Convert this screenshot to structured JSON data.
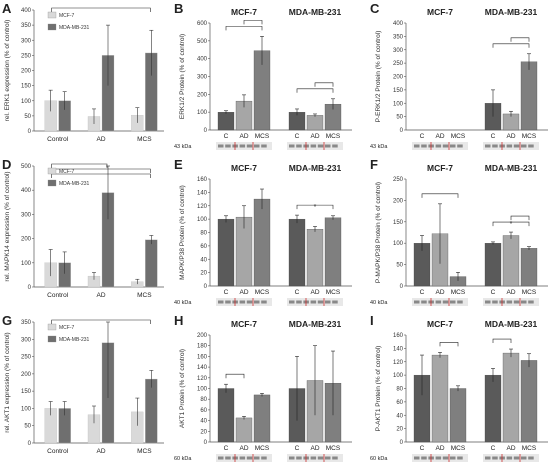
{
  "chart_data": [
    {
      "id": "A",
      "kind": "rna",
      "type": "bar",
      "letter": "A",
      "ylabel": "rel. ERK1 expression (% of control)",
      "ylim": [
        0,
        400
      ],
      "yticks": [
        0,
        50,
        100,
        150,
        200,
        250,
        300,
        350,
        400
      ],
      "categories": [
        "Control",
        "AD",
        "MCS"
      ],
      "series": [
        {
          "name": "MCF-7",
          "values": [
            100,
            48,
            52
          ],
          "err": [
            35,
            25,
            25
          ]
        },
        {
          "name": "MDA-MB-231",
          "values": [
            100,
            250,
            258
          ],
          "err": [
            30,
            100,
            75
          ]
        }
      ],
      "brackets": [
        [
          0,
          2
        ]
      ]
    },
    {
      "id": "B",
      "kind": "protein",
      "type": "bar",
      "letter": "B",
      "ylabel": "ERK1/2 Protein (% of control)",
      "ylim": [
        0,
        600
      ],
      "yticks": [
        0,
        100,
        200,
        300,
        400,
        500,
        600
      ],
      "panels": [
        "MCF-7",
        "MDA-MB-231"
      ],
      "categories": [
        "C",
        "AD",
        "MCS"
      ],
      "groups": [
        {
          "values": [
            100,
            162,
            445
          ],
          "err": [
            8,
            35,
            80
          ]
        },
        {
          "values": [
            100,
            82,
            145
          ],
          "err": [
            18,
            8,
            30
          ]
        }
      ],
      "brackets": [
        [
          [
            0,
            2
          ],
          [
            1,
            2
          ]
        ],
        [
          [
            0,
            2
          ],
          [
            1,
            2
          ]
        ]
      ],
      "stars": [
        [],
        []
      ],
      "blot": "43 kDa"
    },
    {
      "id": "C",
      "kind": "protein",
      "type": "bar",
      "letter": "C",
      "ylabel": "P-ERK1/2 Protein (% of control)",
      "ylim": [
        0,
        400
      ],
      "yticks": [
        0,
        50,
        100,
        150,
        200,
        250,
        300,
        350,
        400
      ],
      "panels": [
        "MCF-7",
        "MDA-MB-231"
      ],
      "categories": [
        "C",
        "AD",
        "MCS"
      ],
      "groups": [
        {
          "values": [
            null,
            null,
            null
          ],
          "err": [
            0,
            0,
            0
          ]
        },
        {
          "values": [
            100,
            60,
            255
          ],
          "err": [
            50,
            10,
            30
          ]
        }
      ],
      "brackets": [
        [],
        [
          [
            0,
            2
          ],
          [
            1,
            2
          ]
        ]
      ],
      "stars": [
        [],
        []
      ],
      "blot": "43 kDa"
    },
    {
      "id": "D",
      "kind": "rna",
      "type": "bar",
      "letter": "D",
      "ylabel": "rel. MAPK14 expression (% of control)",
      "ylim": [
        0,
        500
      ],
      "yticks": [
        0,
        100,
        200,
        300,
        400,
        500
      ],
      "categories": [
        "Control",
        "AD",
        "MCS"
      ],
      "series": [
        {
          "name": "MCF-7",
          "values": [
            100,
            45,
            22
          ],
          "err": [
            55,
            15,
            10
          ]
        },
        {
          "name": "MDA-MB-231",
          "values": [
            100,
            390,
            195
          ],
          "err": [
            45,
            110,
            18
          ]
        }
      ],
      "brackets": [
        [
          0,
          1
        ],
        [
          0,
          2
        ],
        [
          0,
          2
        ]
      ]
    },
    {
      "id": "E",
      "kind": "protein",
      "type": "bar",
      "letter": "E",
      "ylabel": "MAPK/P38 Protein (% of control)",
      "ylim": [
        0,
        160
      ],
      "yticks": [
        0,
        20,
        40,
        60,
        80,
        100,
        120,
        140,
        160
      ],
      "panels": [
        "MCF-7",
        "MDA-MB-231"
      ],
      "categories": [
        "C",
        "AD",
        "MCS"
      ],
      "groups": [
        {
          "values": [
            100,
            103,
            130
          ],
          "err": [
            5,
            17,
            15
          ]
        },
        {
          "values": [
            100,
            85,
            102
          ],
          "err": [
            6,
            4,
            3
          ]
        }
      ],
      "brackets": [
        [],
        [
          [
            0,
            2
          ]
        ]
      ],
      "stars": [
        [],
        [
          1
        ]
      ],
      "blot": "40 kDa"
    },
    {
      "id": "F",
      "kind": "protein",
      "type": "bar",
      "letter": "F",
      "ylabel": "P-MAPK/P38 Protein (% of control)",
      "ylim": [
        0,
        250
      ],
      "yticks": [
        0,
        50,
        100,
        150,
        200,
        250
      ],
      "panels": [
        "MCF-7",
        "MDA-MB-231"
      ],
      "categories": [
        "C",
        "AD",
        "MCS"
      ],
      "groups": [
        {
          "values": [
            100,
            122,
            22
          ],
          "err": [
            18,
            70,
            10
          ]
        },
        {
          "values": [
            100,
            118,
            88
          ],
          "err": [
            3,
            8,
            4
          ]
        }
      ],
      "brackets": [
        [
          [
            0,
            2
          ]
        ],
        [
          [
            0,
            2
          ],
          [
            1,
            2
          ]
        ]
      ],
      "stars": [
        [],
        [
          1
        ]
      ],
      "blot": "40 kDa"
    },
    {
      "id": "G",
      "kind": "rna",
      "type": "bar",
      "letter": "G",
      "ylabel": "rel. AKT1 expression (% of control)",
      "ylim": [
        0,
        350
      ],
      "yticks": [
        0,
        50,
        100,
        150,
        200,
        250,
        300,
        350
      ],
      "categories": [
        "Control",
        "AD",
        "MCS"
      ],
      "series": [
        {
          "name": "MCF-7",
          "values": [
            100,
            82,
            90
          ],
          "err": [
            20,
            25,
            40
          ]
        },
        {
          "name": "MDA-MB-231",
          "values": [
            100,
            290,
            185
          ],
          "err": [
            20,
            160,
            25
          ]
        }
      ],
      "brackets": [
        [
          0,
          2
        ]
      ]
    },
    {
      "id": "H",
      "kind": "protein",
      "type": "bar",
      "letter": "H",
      "ylabel": "AKT1 Protein (% of control)",
      "ylim": [
        0,
        200
      ],
      "yticks": [
        0,
        20,
        40,
        60,
        80,
        100,
        120,
        140,
        160,
        180,
        200
      ],
      "panels": [
        "MCF-7",
        "MDA-MB-231"
      ],
      "categories": [
        "C",
        "AD",
        "MCS"
      ],
      "groups": [
        {
          "values": [
            100,
            45,
            88
          ],
          "err": [
            8,
            3,
            3
          ]
        },
        {
          "values": [
            100,
            115,
            110
          ],
          "err": [
            60,
            65,
            60
          ]
        }
      ],
      "brackets": [
        [
          [
            0,
            1
          ]
        ],
        []
      ],
      "stars": [
        [],
        []
      ],
      "blot": "60 kDa"
    },
    {
      "id": "I",
      "kind": "protein",
      "type": "bar",
      "letter": "I",
      "ylabel": "P-AKT1 Protein (% of control)",
      "ylim": [
        0,
        160
      ],
      "yticks": [
        0,
        20,
        40,
        60,
        80,
        100,
        120,
        140,
        160
      ],
      "panels": [
        "MCF-7",
        "MDA-MB-231"
      ],
      "categories": [
        "C",
        "AD",
        "MCS"
      ],
      "groups": [
        {
          "values": [
            100,
            130,
            80
          ],
          "err": [
            30,
            4,
            4
          ]
        },
        {
          "values": [
            100,
            133,
            122
          ],
          "err": [
            10,
            6,
            10
          ]
        }
      ],
      "brackets": [
        [
          [
            1,
            2
          ]
        ],
        [
          [
            0,
            1
          ]
        ]
      ],
      "stars": [
        [],
        []
      ],
      "blot": "60 kDa"
    }
  ],
  "colors": {
    "axis": "#555555",
    "dark": "#5a5a5a",
    "mid": "#a6a6a6",
    "light": "#7f7f7f",
    "ctrl_light": "#d9d9d9",
    "ctrl_dark": "#6f6f6f",
    "blot_bg": "#e8e8e8",
    "blot_band": "#3a3a3a",
    "marker": "#d03030"
  }
}
